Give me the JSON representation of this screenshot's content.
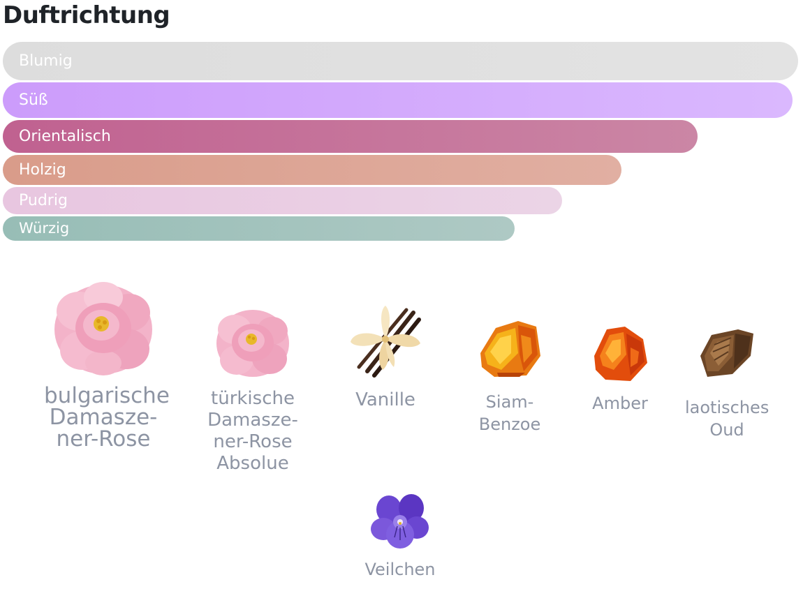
{
  "title": "Duftrichtung",
  "bars": [
    {
      "label": "Blumig",
      "color": "#dddddd"
    },
    {
      "label": "Süß",
      "color": "#d1a6fc"
    },
    {
      "label": "Orientalisch",
      "color": "#c3709a"
    },
    {
      "label": "Holzig",
      "color": "#dca595"
    },
    {
      "label": "Pudrig",
      "color": "#e9cde3"
    },
    {
      "label": "Würzig",
      "color": "#a1c2bc"
    }
  ],
  "ingredients": [
    {
      "name": "bulgarische Damasze-ner-Rose",
      "icon": "pink-rose-icon"
    },
    {
      "name": "türkische Damasze-ner-Rose Absolue",
      "icon": "pink-rose-icon"
    },
    {
      "name": "Vanille",
      "icon": "vanilla-flower-icon"
    },
    {
      "name": "Siam-Benzoe",
      "icon": "orange-resin-icon"
    },
    {
      "name": "Amber",
      "icon": "amber-stone-icon"
    },
    {
      "name": "laotisches Oud",
      "icon": "oud-wood-icon"
    },
    {
      "name": "Veilchen",
      "icon": "violet-flower-icon"
    }
  ]
}
